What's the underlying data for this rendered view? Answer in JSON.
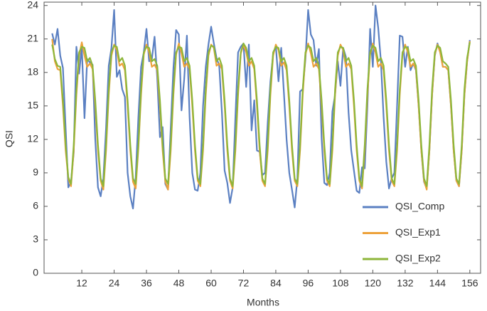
{
  "chart_data": {
    "type": "line",
    "x_label": "Months",
    "y_label": "QSI",
    "xlim": [
      -2,
      160
    ],
    "ylim": [
      0,
      24.3
    ],
    "xticks": [
      12,
      24,
      36,
      48,
      60,
      72,
      84,
      96,
      108,
      120,
      132,
      144,
      156
    ],
    "yticks": [
      0,
      3,
      6,
      9,
      12,
      15,
      18,
      21,
      24
    ],
    "legend": "lower right",
    "x": [
      1,
      2,
      3,
      4,
      5,
      6,
      7,
      8,
      9,
      10,
      11,
      12,
      13,
      14,
      15,
      16,
      17,
      18,
      19,
      20,
      21,
      22,
      23,
      24,
      25,
      26,
      27,
      28,
      29,
      30,
      31,
      32,
      33,
      34,
      35,
      36,
      37,
      38,
      39,
      40,
      41,
      42,
      43,
      44,
      45,
      46,
      47,
      48,
      49,
      50,
      51,
      52,
      53,
      54,
      55,
      56,
      57,
      58,
      59,
      60,
      61,
      62,
      63,
      64,
      65,
      66,
      67,
      68,
      69,
      70,
      71,
      72,
      73,
      74,
      75,
      76,
      77,
      78,
      79,
      80,
      81,
      82,
      83,
      84,
      85,
      86,
      87,
      88,
      89,
      90,
      91,
      92,
      93,
      94,
      95,
      96,
      97,
      98,
      99,
      100,
      101,
      102,
      103,
      104,
      105,
      106,
      107,
      108,
      109,
      110,
      111,
      112,
      113,
      114,
      115,
      116,
      117,
      118,
      119,
      120,
      121,
      122,
      123,
      124,
      125,
      126,
      127,
      128,
      129,
      130,
      131,
      132,
      133,
      134,
      135,
      136,
      137,
      138,
      139,
      140,
      141,
      142,
      143,
      144,
      145,
      146,
      147,
      148,
      149,
      150,
      151,
      152,
      153,
      154,
      155,
      156
    ],
    "series": [
      {
        "name": "QSI_Comp",
        "color": "#5b80c2",
        "values": [
          21.5,
          20.5,
          21.9,
          19.5,
          18.4,
          13,
          7.7,
          8.2,
          10.8,
          20.3,
          17.9,
          20.3,
          13.9,
          19.2,
          18.9,
          18.7,
          12,
          7.7,
          6.9,
          8.5,
          13,
          18.6,
          20.2,
          23.6,
          17.6,
          18.2,
          16.5,
          15.8,
          9,
          6.9,
          5.8,
          8.6,
          14,
          18.5,
          19.8,
          21.9,
          19,
          19.2,
          21.2,
          17.5,
          12.2,
          13.1,
          8,
          7.5,
          13,
          18.4,
          21.8,
          21.4,
          14.6,
          17.4,
          21.3,
          14,
          9,
          7.5,
          7.4,
          9,
          15,
          18.5,
          20.5,
          22.1,
          20.6,
          19.3,
          18.6,
          14.4,
          9.2,
          8.1,
          6.3,
          7.7,
          14,
          19.8,
          20.3,
          20.6,
          16.7,
          20.5,
          12.8,
          15.5,
          11,
          10.9,
          8.8,
          9,
          13.5,
          17.2,
          19.6,
          20.4,
          17.2,
          20.2,
          16.2,
          12,
          9,
          7.5,
          5.9,
          8.5,
          16.3,
          16.5,
          19.2,
          23.6,
          21.4,
          20.9,
          18.6,
          20.1,
          12.1,
          8.1,
          7.9,
          9,
          14.5,
          16,
          19,
          16.8,
          20.2,
          19.4,
          14.4,
          11,
          9.2,
          7.4,
          7.2,
          9.5,
          9.4,
          15,
          21.9,
          18.5,
          24,
          22,
          19,
          14,
          10,
          7.6,
          8.5,
          9,
          15,
          21.3,
          21.2,
          18.5,
          20.3,
          18.2,
          18.8,
          18.2,
          15,
          11,
          8.2,
          7.6,
          11,
          16,
          19.5,
          20.6,
          19.8,
          18.5,
          18.5,
          18.2,
          15,
          11,
          8.3,
          7.8,
          11,
          16,
          19,
          20.9
        ]
      },
      {
        "name": "QSI_Exp1",
        "color": "#eda23b",
        "values": [
          21,
          19,
          18.3,
          18.2,
          15,
          11,
          8.5,
          7.8,
          11,
          16,
          19.5,
          20.7,
          19.5,
          18.5,
          18.8,
          18.3,
          15,
          11,
          8.3,
          7.5,
          11,
          16,
          19.5,
          20.5,
          20,
          18.6,
          18.8,
          18.2,
          15,
          11,
          8.2,
          7.6,
          11.2,
          16,
          19.6,
          20.5,
          19.8,
          18.5,
          18.7,
          18.2,
          15,
          11,
          8.2,
          7.5,
          11,
          16,
          19.6,
          20.6,
          19.7,
          18.5,
          18.8,
          18.3,
          15,
          11,
          8.3,
          7.8,
          11,
          16,
          19.5,
          20.5,
          20.2,
          18.6,
          18.8,
          18.3,
          15,
          11,
          8.3,
          7.6,
          11,
          16,
          19.7,
          20.5,
          19.8,
          18.6,
          19,
          18.3,
          15,
          11,
          8.3,
          7.8,
          11,
          16,
          19.5,
          20.5,
          20,
          18.6,
          18.9,
          18.2,
          15,
          11,
          8.3,
          7.8,
          11,
          16,
          19.6,
          20.6,
          19.7,
          18.5,
          18.8,
          18.3,
          15,
          11,
          8.3,
          7.8,
          11,
          16,
          19.5,
          20.5,
          20,
          18.5,
          18.8,
          18.3,
          15,
          11,
          8.3,
          7.6,
          11,
          16,
          19.6,
          20.6,
          19.8,
          18.5,
          18.8,
          18.2,
          15,
          11,
          8.3,
          7.8,
          11,
          16,
          19.6,
          20.5,
          19.8,
          18.5,
          18.8,
          18.3,
          15,
          11,
          8.3,
          7.5,
          11,
          16,
          19.6,
          20.5,
          19.8,
          18.5,
          18.5,
          18.2,
          15,
          11,
          8.3,
          7.8,
          11,
          16,
          19,
          20.8
        ]
      },
      {
        "name": "QSI_Exp2",
        "color": "#8db63a",
        "values": [
          20.5,
          19.2,
          18.6,
          18.5,
          15.5,
          11.5,
          8.6,
          8,
          11.5,
          16.5,
          19.8,
          20.3,
          20.2,
          19,
          19.3,
          18.6,
          15.5,
          11.5,
          8.5,
          7.8,
          11.5,
          16.5,
          19.8,
          20.4,
          20.3,
          19,
          19.3,
          18.6,
          15.5,
          11.5,
          8.5,
          8,
          11.5,
          16.5,
          19.8,
          20.3,
          20.2,
          19,
          19.2,
          18.6,
          15.5,
          11.5,
          8.5,
          8,
          11.5,
          16.5,
          19.8,
          20.3,
          20.2,
          19,
          19.3,
          18.6,
          15.5,
          11.5,
          8.5,
          8,
          11.5,
          16.5,
          19.8,
          20.4,
          20.3,
          19,
          19.3,
          18.6,
          15.5,
          11.5,
          8.5,
          7.8,
          11.5,
          16.5,
          19.8,
          20.6,
          20.2,
          19,
          19.3,
          18.6,
          15.5,
          11.5,
          8.5,
          8,
          11.5,
          16.5,
          19.8,
          20.3,
          20.2,
          19,
          19.3,
          18.6,
          15.5,
          11.5,
          8.5,
          8,
          11.5,
          16.5,
          19.8,
          20.4,
          20.2,
          19,
          19.3,
          18.6,
          15.5,
          11.5,
          8.5,
          8,
          11.5,
          16.5,
          19.8,
          20.3,
          20.2,
          19,
          19.3,
          18.6,
          15.5,
          11.5,
          8.5,
          7.8,
          11.5,
          16.5,
          19.8,
          20.4,
          20.2,
          19,
          19.3,
          18.6,
          15.5,
          11.5,
          8.5,
          8,
          11.5,
          16.5,
          19.8,
          20.3,
          20.2,
          19,
          19.2,
          18.6,
          15.5,
          11.5,
          8.5,
          7.8,
          11.5,
          16.5,
          19.8,
          20.4,
          20.2,
          19,
          18.8,
          18.5,
          15.5,
          11.5,
          8.5,
          8,
          11.5,
          16.5,
          19.3,
          20.7
        ]
      }
    ]
  }
}
